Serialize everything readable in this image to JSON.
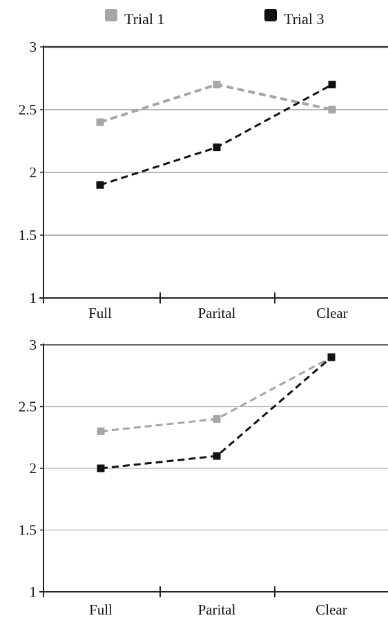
{
  "legend": {
    "items": [
      {
        "name": "Trial 1",
        "color": "#a6a6a6"
      },
      {
        "name": "Trial 3",
        "color": "#111111"
      }
    ],
    "placement": "top"
  },
  "chart_data": [
    {
      "type": "line",
      "categories": [
        "Full",
        "Parital",
        "Clear"
      ],
      "series": [
        {
          "name": "Trial 1",
          "values": [
            2.4,
            2.7,
            2.5
          ],
          "color": "#a6a6a6"
        },
        {
          "name": "Trial 3",
          "values": [
            1.9,
            2.2,
            2.7
          ],
          "color": "#111111"
        }
      ],
      "ylim": [
        1,
        3
      ],
      "yticks": [
        "1",
        "1.5",
        "2",
        "2.5",
        "3"
      ],
      "grid": true
    },
    {
      "type": "line",
      "categories": [
        "Full",
        "Parital",
        "Clear"
      ],
      "series": [
        {
          "name": "Trial 1",
          "values": [
            2.3,
            2.4,
            2.9
          ],
          "color": "#a6a6a6"
        },
        {
          "name": "Trial 3",
          "values": [
            2.0,
            2.1,
            2.9
          ],
          "color": "#111111"
        }
      ],
      "ylim": [
        1,
        3
      ],
      "yticks": [
        "1",
        "1.5",
        "2",
        "2.5",
        "3"
      ],
      "grid": true
    }
  ]
}
